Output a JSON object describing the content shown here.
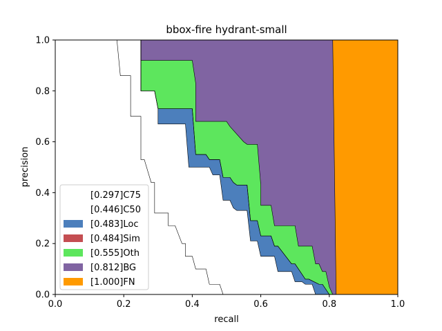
{
  "chart_data": {
    "type": "area",
    "title": "bbox-fire hydrant-small",
    "xlabel": "recall",
    "ylabel": "precision",
    "xlim": [
      0,
      1
    ],
    "ylim": [
      0,
      1
    ],
    "xticks": [
      "0.0",
      "0.2",
      "0.4",
      "0.6",
      "0.8",
      "1.0"
    ],
    "yticks": [
      "0.0",
      "0.2",
      "0.4",
      "0.6",
      "0.8",
      "1.0"
    ],
    "legend_position": "lower-left",
    "grid": false,
    "series": [
      {
        "name": "[0.297]C75",
        "color": "#ffffff",
        "x": [
          0,
          0.18,
          0.19,
          0.19,
          0.22,
          0.22,
          0.25,
          0.25,
          0.26,
          0.26,
          0.28,
          0.29,
          0.29,
          0.33,
          0.33,
          0.35,
          0.37,
          0.38,
          0.38,
          0.4,
          0.41,
          0.44,
          0.45,
          0.48,
          0.49
        ],
        "y": [
          1.0,
          1.0,
          0.86,
          0.86,
          0.86,
          0.7,
          0.7,
          0.53,
          0.53,
          0.53,
          0.44,
          0.44,
          0.32,
          0.32,
          0.27,
          0.27,
          0.2,
          0.2,
          0.15,
          0.15,
          0.1,
          0.1,
          0.04,
          0.04,
          0.0
        ]
      },
      {
        "name": "[0.446]C50",
        "color": "#ffffff",
        "x": [
          0,
          0.25,
          0.25,
          0.29,
          0.3,
          0.3,
          0.38,
          0.39,
          0.41,
          0.45,
          0.46,
          0.48,
          0.49,
          0.51,
          0.52,
          0.53,
          0.56,
          0.57,
          0.59,
          0.6,
          0.63,
          0.64,
          0.65,
          0.69,
          0.7,
          0.72,
          0.73,
          0.75,
          0.76
        ],
        "y": [
          1.0,
          1.0,
          0.8,
          0.8,
          0.73,
          0.67,
          0.67,
          0.5,
          0.5,
          0.5,
          0.47,
          0.47,
          0.37,
          0.37,
          0.34,
          0.33,
          0.33,
          0.21,
          0.21,
          0.15,
          0.15,
          0.15,
          0.09,
          0.09,
          0.05,
          0.05,
          0.04,
          0.04,
          0.0
        ]
      },
      {
        "name": "[0.483]Loc",
        "color": "#4c7fbc",
        "x": [
          0,
          0.25,
          0.25,
          0.29,
          0.3,
          0.4,
          0.41,
          0.44,
          0.45,
          0.48,
          0.49,
          0.51,
          0.52,
          0.53,
          0.56,
          0.57,
          0.59,
          0.6,
          0.63,
          0.64,
          0.65,
          0.69,
          0.7,
          0.73,
          0.74,
          0.77,
          0.78,
          0.8,
          0.81
        ],
        "y": [
          1.0,
          1.0,
          0.8,
          0.8,
          0.73,
          0.73,
          0.55,
          0.55,
          0.53,
          0.53,
          0.46,
          0.46,
          0.44,
          0.43,
          0.43,
          0.29,
          0.29,
          0.23,
          0.23,
          0.19,
          0.19,
          0.12,
          0.12,
          0.06,
          0.06,
          0.04,
          0.04,
          0.0,
          0.0
        ]
      },
      {
        "name": "[0.484]Sim",
        "color": "#c44e52",
        "x": [
          0,
          0.25,
          0.25,
          0.29,
          0.3,
          0.4,
          0.41,
          0.44,
          0.45,
          0.48,
          0.49,
          0.51,
          0.52,
          0.53,
          0.56,
          0.57,
          0.59,
          0.6,
          0.63,
          0.64,
          0.65,
          0.69,
          0.7,
          0.73,
          0.74,
          0.77,
          0.78,
          0.8,
          0.81
        ],
        "y": [
          1.0,
          1.0,
          0.8,
          0.8,
          0.73,
          0.73,
          0.55,
          0.55,
          0.53,
          0.53,
          0.46,
          0.46,
          0.44,
          0.43,
          0.43,
          0.29,
          0.29,
          0.23,
          0.23,
          0.19,
          0.19,
          0.12,
          0.12,
          0.06,
          0.06,
          0.04,
          0.04,
          0.0,
          0.0
        ]
      },
      {
        "name": "[0.555]Oth",
        "color": "#5de65d",
        "x": [
          0,
          0.25,
          0.25,
          0.28,
          0.29,
          0.29,
          0.4,
          0.41,
          0.41,
          0.5,
          0.51,
          0.55,
          0.56,
          0.59,
          0.6,
          0.6,
          0.63,
          0.64,
          0.7,
          0.71,
          0.75,
          0.76,
          0.77,
          0.78,
          0.79,
          0.8,
          0.81
        ],
        "y": [
          1.0,
          1.0,
          0.92,
          0.92,
          0.92,
          0.92,
          0.92,
          0.83,
          0.68,
          0.68,
          0.66,
          0.6,
          0.59,
          0.59,
          0.43,
          0.35,
          0.35,
          0.27,
          0.27,
          0.19,
          0.19,
          0.12,
          0.12,
          0.09,
          0.09,
          0.03,
          0.0
        ]
      },
      {
        "name": "[0.812]BG",
        "color": "#8064a2",
        "x": [
          0,
          0.81,
          0.82
        ],
        "y": [
          1.0,
          1.0,
          0.0
        ]
      },
      {
        "name": "[1.000]FN",
        "color": "#ff9a00",
        "x": [
          0,
          1.0
        ],
        "y": [
          1.0,
          1.0
        ]
      }
    ]
  }
}
